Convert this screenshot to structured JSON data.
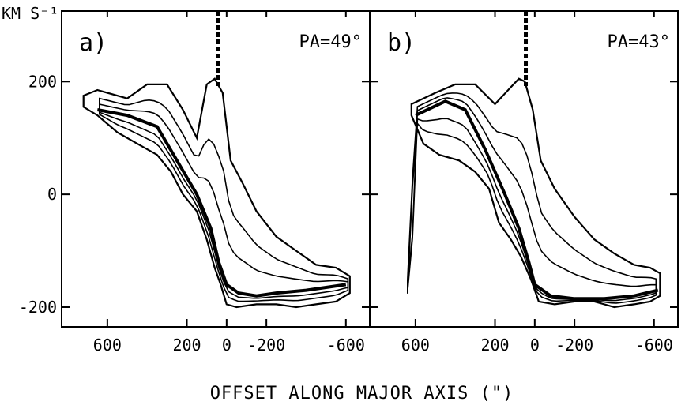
{
  "chart_data": [
    {
      "type": "contour",
      "panel_label": "a)",
      "annotation": "PA=49°",
      "ylabel": "KM S⁻¹",
      "xlabel": "OFFSET ALONG MAJOR AXIS (\")",
      "xlim": [
        830,
        -720
      ],
      "ylim": [
        -235,
        325
      ],
      "x_ticks": [
        600,
        200,
        0,
        -200,
        -600
      ],
      "y_ticks": [
        200,
        0,
        -200
      ],
      "rotation_curve": {
        "x": [
          650,
          500,
          350,
          250,
          150,
          80,
          40,
          0,
          -60,
          -150,
          -250,
          -400,
          -600
        ],
        "y": [
          150,
          140,
          120,
          60,
          0,
          -60,
          -120,
          -160,
          -175,
          -180,
          -175,
          -170,
          -160
        ]
      },
      "envelope_upper": {
        "x": [
          720,
          650,
          500,
          400,
          300,
          220,
          150,
          100,
          60,
          20,
          -20,
          -80,
          -150,
          -250,
          -350,
          -450,
          -550,
          -620
        ],
        "y": [
          175,
          185,
          170,
          195,
          195,
          150,
          100,
          195,
          205,
          180,
          60,
          20,
          -30,
          -75,
          -100,
          -125,
          -130,
          -145
        ]
      },
      "envelope_lower": {
        "x": [
          720,
          650,
          550,
          450,
          350,
          280,
          220,
          150,
          100,
          60,
          30,
          0,
          -50,
          -150,
          -250,
          -350,
          -450,
          -550,
          -620
        ],
        "y": [
          155,
          140,
          110,
          90,
          70,
          40,
          0,
          -30,
          -80,
          -130,
          -160,
          -195,
          -200,
          -195,
          -195,
          -200,
          -195,
          -190,
          -175
        ]
      }
    },
    {
      "type": "contour",
      "panel_label": "b)",
      "annotation": "PA=43°",
      "xlabel": "OFFSET ALONG MAJOR AXIS (\")",
      "xlim": [
        830,
        -720
      ],
      "ylim": [
        -235,
        325
      ],
      "x_ticks": [
        600,
        200,
        0,
        -200,
        -600
      ],
      "y_ticks": [
        200,
        0,
        -200
      ],
      "rotation_curve": {
        "x": [
          600,
          450,
          350,
          250,
          150,
          80,
          30,
          0,
          -80,
          -200,
          -350,
          -500,
          -620
        ],
        "y": [
          140,
          165,
          150,
          80,
          0,
          -60,
          -120,
          -160,
          -180,
          -185,
          -185,
          -180,
          -170
        ]
      },
      "envelope_upper": {
        "x": [
          620,
          500,
          400,
          300,
          200,
          120,
          80,
          50,
          10,
          -30,
          -100,
          -200,
          -300,
          -400,
          -500,
          -580,
          -630
        ],
        "y": [
          160,
          180,
          195,
          195,
          160,
          190,
          205,
          200,
          150,
          60,
          10,
          -40,
          -80,
          -105,
          -125,
          -130,
          -140
        ]
      },
      "envelope_lower": {
        "x": [
          620,
          560,
          480,
          380,
          300,
          230,
          180,
          120,
          70,
          20,
          -20,
          -100,
          -200,
          -300,
          -400,
          -500,
          -580,
          -630
        ],
        "y": [
          140,
          90,
          70,
          60,
          40,
          10,
          -50,
          -80,
          -110,
          -150,
          -190,
          -195,
          -190,
          -190,
          -200,
          -195,
          -190,
          -180
        ]
      }
    }
  ]
}
